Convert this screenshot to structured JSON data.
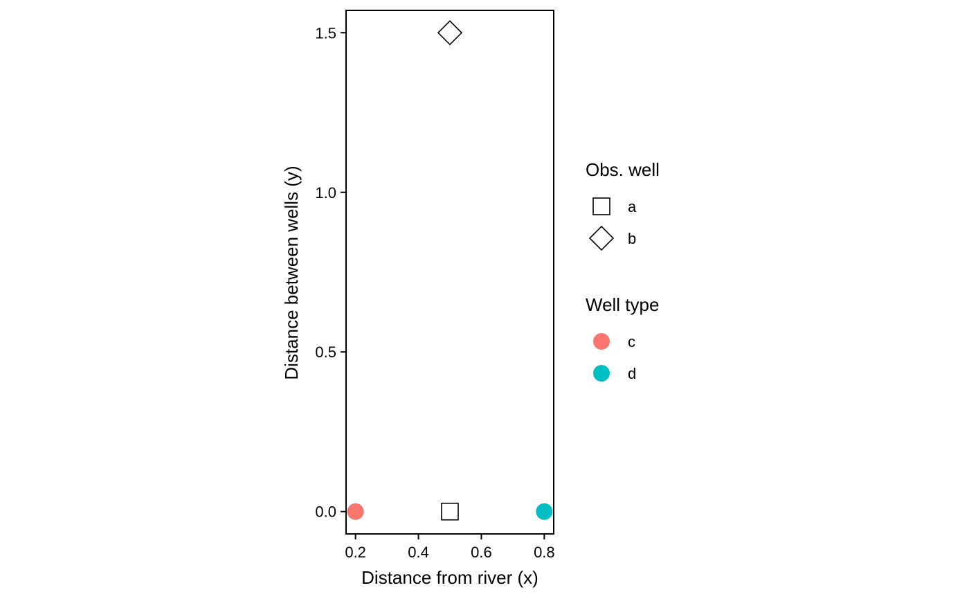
{
  "chart_data": {
    "type": "scatter",
    "xlabel": "Distance from river (x)",
    "ylabel": "Distance between wells (y)",
    "xlim": [
      0.17,
      0.83
    ],
    "ylim": [
      -0.07,
      1.57
    ],
    "x_ticks": [
      0.2,
      0.4,
      0.6,
      0.8
    ],
    "x_tick_labels": [
      "0.2",
      "0.4",
      "0.6",
      "0.8"
    ],
    "y_ticks": [
      0.0,
      0.5,
      1.0,
      1.5
    ],
    "y_tick_labels": [
      "0.0",
      "0.5",
      "1.0",
      "1.5"
    ],
    "grid": false,
    "points": [
      {
        "x": 0.2,
        "y": 0.0,
        "legend": "Well type",
        "level": "c",
        "shape": "circle",
        "color": "#F8766D"
      },
      {
        "x": 0.5,
        "y": 0.0,
        "legend": "Obs. well",
        "level": "a",
        "shape": "square",
        "color": "#000000"
      },
      {
        "x": 0.8,
        "y": 0.0,
        "legend": "Well type",
        "level": "d",
        "shape": "circle",
        "color": "#00BFC4"
      },
      {
        "x": 0.5,
        "y": 1.5,
        "legend": "Obs. well",
        "level": "b",
        "shape": "diamond",
        "color": "#000000"
      }
    ],
    "legend_position": "right",
    "legends": [
      {
        "title": "Obs. well",
        "items": [
          {
            "label": "a",
            "shape": "square",
            "color": "#000000"
          },
          {
            "label": "b",
            "shape": "diamond",
            "color": "#000000"
          }
        ]
      },
      {
        "title": "Well type",
        "items": [
          {
            "label": "c",
            "shape": "circle",
            "color": "#F8766D"
          },
          {
            "label": "d",
            "shape": "circle",
            "color": "#00BFC4"
          }
        ]
      }
    ]
  }
}
